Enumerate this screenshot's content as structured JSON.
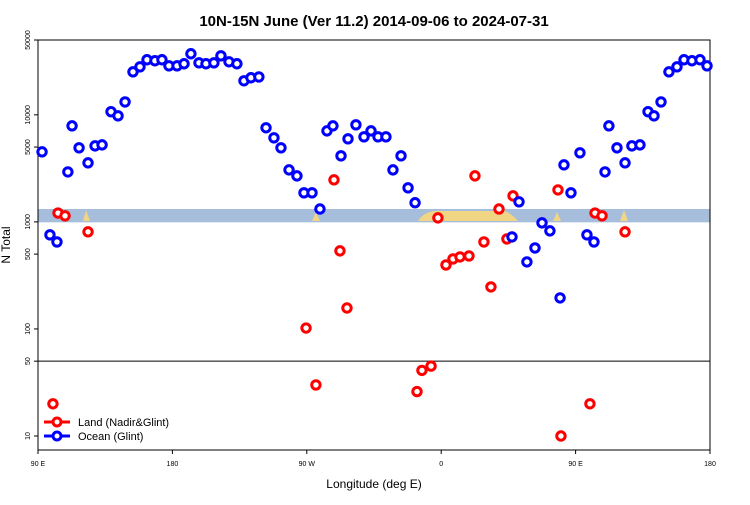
{
  "chart_data": {
    "type": "scatter",
    "title": "10N-15N June (Ver 11.2)   2014-09-06 to 2024-07-31",
    "xlabel": "Longitude (deg E)",
    "ylabel": "N Total",
    "xlim": [
      90,
      540
    ],
    "xticks": [
      {
        "value": 90,
        "label": "90 E"
      },
      {
        "value": 180,
        "label": "180"
      },
      {
        "value": 270,
        "label": "90 W"
      },
      {
        "value": 360,
        "label": "0"
      },
      {
        "value": 450,
        "label": "90 E"
      },
      {
        "value": 540,
        "label": "180"
      }
    ],
    "ylim": [
      7.4,
      50000
    ],
    "yscale": "log",
    "yticks": [
      10,
      50,
      100,
      500,
      1000,
      5000,
      10000,
      50000
    ],
    "hline": 50,
    "band": {
      "range": [
        990,
        1320
      ],
      "color": "#a6bddb"
    },
    "legend": "lower left",
    "series": [
      {
        "name": "Land (Nadir&Glint)",
        "color": "#ff0000",
        "x": [
          100,
          103.4,
          108.1,
          123.5,
          269.5,
          276.1,
          288.2,
          292.2,
          296.9,
          343.8,
          347.1,
          353.2,
          357.8,
          363.2,
          367.9,
          372.6,
          378.6,
          382.6,
          388.6,
          393.3,
          398.7,
          404,
          408.1,
          438.2,
          440.2,
          459.6,
          463,
          467.7,
          483.1
        ],
        "values": [
          20,
          1210,
          1140,
          807,
          102,
          30,
          2470,
          536,
          157,
          26,
          41,
          45,
          1090,
          396,
          451,
          471,
          481,
          2690,
          650,
          247,
          1320,
          693,
          1750,
          1990,
          10,
          20,
          1210,
          1140,
          807
        ]
      },
      {
        "name": "Ocean (Glint)",
        "color": "#0000ff",
        "x": [
          92.7,
          98,
          102.7,
          110,
          112.8,
          117.5,
          123.5,
          128.2,
          132.9,
          138.9,
          143.6,
          148.3,
          153.6,
          158.3,
          163,
          168.3,
          173,
          177.7,
          183.1,
          187.8,
          192.4,
          197.8,
          202.5,
          207.8,
          212.5,
          217.9,
          223.2,
          227.9,
          232.6,
          237.9,
          242.7,
          248,
          252.7,
          258.1,
          263.4,
          268.1,
          273.5,
          278.8,
          283.5,
          287.5,
          292.9,
          297.6,
          302.9,
          308.3,
          313,
          317.7,
          323,
          327.7,
          333.1,
          337.8,
          342.5,
          407.4,
          412.1,
          417.4,
          422.8,
          427.5,
          432.8,
          439.6,
          442.2,
          446.9,
          452.9,
          457.6,
          462.3,
          469.7,
          472.3,
          477.7,
          483.1,
          487.7,
          493.1,
          498.5,
          502.5,
          507.2,
          512.5,
          517.9,
          522.6,
          527.9,
          533.3,
          538
        ],
        "values": [
          4510,
          757,
          650,
          2930,
          7890,
          4920,
          3560,
          5130,
          5240,
          10700,
          9790,
          13200,
          25200,
          28100,
          32700,
          32000,
          32700,
          28700,
          28700,
          30000,
          37200,
          30600,
          30000,
          30600,
          35600,
          31300,
          30000,
          20800,
          22200,
          22600,
          7570,
          6100,
          4920,
          3060,
          2690,
          1870,
          1870,
          1320,
          7080,
          7890,
          4140,
          5970,
          8070,
          6230,
          7080,
          6230,
          6230,
          3060,
          4140,
          2080,
          1510,
          724,
          1540,
          423,
          571,
          979,
          824,
          195,
          3410,
          1870,
          4420,
          757,
          650,
          2930,
          7890,
          4920,
          3560,
          5130,
          5240,
          10700,
          9790,
          13200,
          25200,
          28100,
          32700,
          32000,
          32700,
          28700
        ]
      }
    ]
  }
}
